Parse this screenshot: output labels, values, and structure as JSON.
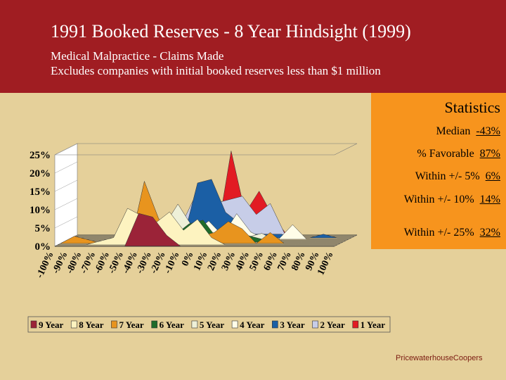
{
  "header": {
    "title": "1991 Booked Reserves - 8 Year Hindsight (1999)",
    "subtitle1": "Medical Malpractice - Claims Made",
    "subtitle2": "Excludes companies with initial booked reserves less than $1 million"
  },
  "stats": {
    "title": "Statistics",
    "rows": [
      {
        "label": "Median",
        "value": "-43%"
      },
      {
        "label": "% Favorable",
        "value": "87%"
      },
      {
        "label": "Within +/- 5%",
        "value": "6%"
      },
      {
        "label": "Within +/- 10%",
        "value": "14%"
      },
      {
        "label": "Within +/- 25%",
        "value": "32%"
      }
    ]
  },
  "footer": {
    "brand": "PricewaterhouseCoopers"
  },
  "colors": {
    "header_bg": "#a01d22",
    "panel_bg": "#f7941d",
    "page_bg": "#e5d09a"
  },
  "chart_data": {
    "type": "area",
    "categories": [
      "-100%",
      "-90%",
      "-80%",
      "-70%",
      "-60%",
      "-50%",
      "-40%",
      "-30%",
      "-20%",
      "-10%",
      "0%",
      "10%",
      "20%",
      "30%",
      "40%",
      "50%",
      "60%",
      "70%",
      "80%",
      "90%",
      "100%"
    ],
    "y_ticks": [
      "0%",
      "5%",
      "10%",
      "15%",
      "20%",
      "25%"
    ],
    "ylim": [
      0,
      25
    ],
    "legend_position": "bottom",
    "series": [
      {
        "name": "9 Year",
        "color": "#9b2338",
        "values": [
          0,
          0,
          0,
          0,
          0,
          0,
          9,
          8,
          3,
          0,
          0,
          0,
          0,
          0,
          0,
          0,
          0,
          0,
          0,
          0,
          0
        ]
      },
      {
        "name": "8 Year",
        "color": "#fdf3c0",
        "values": [
          0,
          0,
          0,
          1,
          2,
          10,
          8,
          6,
          9,
          4,
          7,
          2,
          0,
          0,
          0,
          0,
          0,
          0,
          0,
          0,
          0
        ]
      },
      {
        "name": "7 Year",
        "color": "#e8941e",
        "values": [
          0,
          2,
          1,
          0,
          0,
          0,
          17,
          7,
          0,
          0,
          2,
          3,
          6,
          4,
          0,
          3,
          0,
          0,
          0,
          0,
          0
        ]
      },
      {
        "name": "6 Year",
        "color": "#1f6b2b",
        "values": [
          0,
          0,
          0,
          0,
          0,
          0,
          6,
          3,
          2,
          5,
          6,
          1,
          1,
          2,
          1,
          0,
          0,
          0,
          0,
          0,
          0
        ]
      },
      {
        "name": "5 Year",
        "color": "#eef0d8",
        "values": [
          0,
          0,
          0,
          0,
          0,
          0,
          0,
          4,
          10,
          4,
          2,
          1,
          2,
          1,
          2,
          0,
          0,
          0,
          0,
          0,
          0
        ]
      },
      {
        "name": "4 Year",
        "color": "#fffde8",
        "values": [
          0,
          0,
          0,
          0,
          0,
          0,
          0,
          0,
          0,
          2,
          5,
          1,
          7,
          2,
          0,
          0,
          4,
          0,
          0,
          0,
          0
        ]
      },
      {
        "name": "3 Year",
        "color": "#1b5fa5",
        "values": [
          0,
          0,
          0,
          0,
          1,
          0,
          0,
          0,
          0,
          15,
          16,
          7,
          4,
          1,
          1,
          1,
          0,
          0,
          1,
          0,
          0
        ]
      },
      {
        "name": "2 Year",
        "color": "#c7cde8",
        "values": [
          0,
          0,
          0,
          0,
          0,
          0,
          0,
          0,
          6,
          14,
          9,
          10,
          11,
          6,
          9,
          1,
          0,
          0,
          0,
          0,
          0
        ]
      },
      {
        "name": "1 Year",
        "color": "#e21b23",
        "values": [
          0,
          0,
          0,
          0,
          0,
          0,
          0,
          0,
          0,
          0,
          0,
          23,
          6,
          12,
          5,
          0,
          0,
          0,
          0,
          0,
          0
        ]
      }
    ]
  }
}
